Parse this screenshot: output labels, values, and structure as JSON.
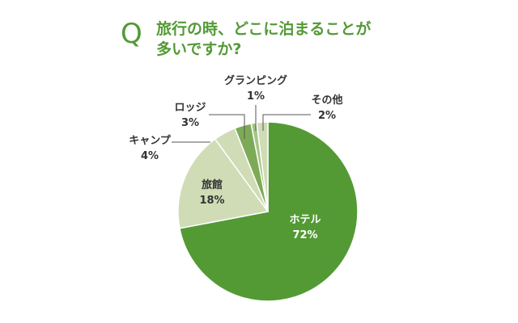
{
  "question": {
    "mark": "Q",
    "line1": "旅行の時、どこに泊まることが",
    "line2": "多いですか?"
  },
  "colors": {
    "accent": "#539a35",
    "hotel": "#539a35",
    "ryokan": "#cfdcb6",
    "cabin": "#cfdcb6",
    "lodge": "#7daa56",
    "glamping": "#a6c486",
    "other": "#cfdcb6",
    "label_dark": "#333333",
    "label_light": "#ffffff",
    "separator": "#ffffff",
    "leader": "#555555"
  },
  "chart_data": {
    "type": "pie",
    "title": "旅行の時、どこに泊まることが多いですか?",
    "slices": [
      {
        "label": "ホテル",
        "pct_label": "72%",
        "value": 72
      },
      {
        "label": "旅館",
        "pct_label": "18%",
        "value": 18
      },
      {
        "label": "キャンプ",
        "pct_label": "4%",
        "value": 4
      },
      {
        "label": "ロッジ",
        "pct_label": "3%",
        "value": 3
      },
      {
        "label": "グランピング",
        "pct_label": "1%",
        "value": 1
      },
      {
        "label": "その他",
        "pct_label": "2%",
        "value": 2
      }
    ]
  }
}
